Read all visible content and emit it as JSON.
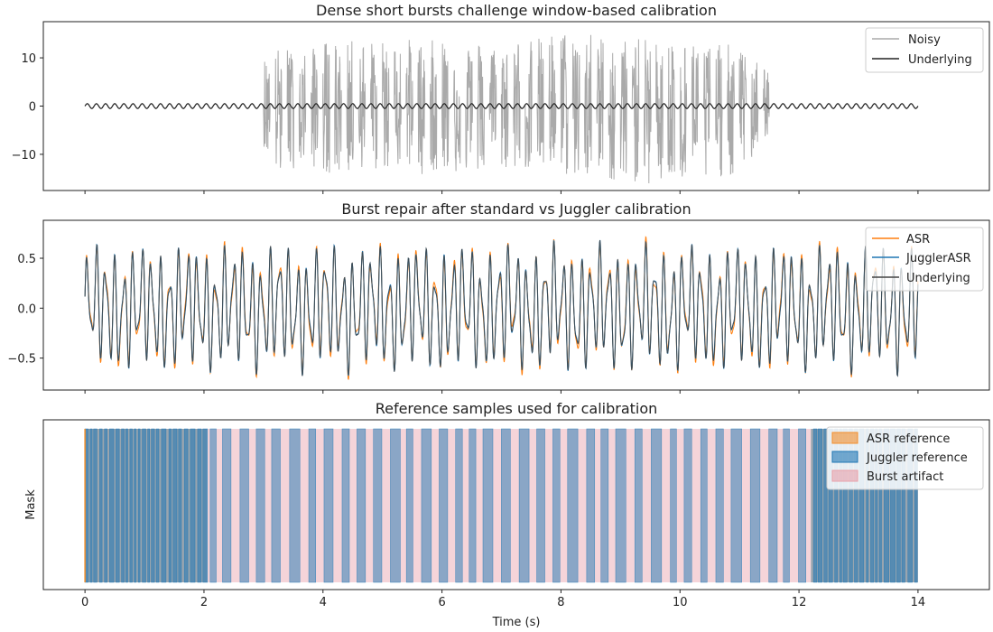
{
  "chart_data": [
    {
      "type": "line",
      "title": "Dense short bursts challenge window-based calibration",
      "xlabel": "",
      "ylabel": "",
      "xlim": [
        -0.7,
        15.2
      ],
      "ylim": [
        -17.5,
        17.5
      ],
      "yticks": [
        -10,
        0,
        10
      ],
      "yticklabels": [
        "−10",
        "0",
        "10"
      ],
      "legend": {
        "placement": "top-right",
        "entries": [
          "Noisy",
          "Underlying"
        ]
      },
      "series": [
        {
          "name": "Noisy",
          "color": "#aaaaaa",
          "description_points": {
            "x": [
              0,
              3.0,
              3.3,
              3.6,
              4.0,
              5.0,
              6.0,
              7.0,
              8.0,
              9.0,
              10.0,
              11.0,
              11.5,
              14.0
            ],
            "y_max": [
              0.4,
              10.5,
              12.0,
              11.0,
              13.0,
              13.5,
              14.0,
              13.0,
              15.5,
              14.0,
              13.5,
              12.0,
              7.0,
              0.4
            ],
            "y_min": [
              -0.4,
              -8.0,
              -15.5,
              -11.0,
              -14.0,
              -13.0,
              -14.0,
              -13.0,
              -14.0,
              -16.0,
              -16.5,
              -14.0,
              -6.0,
              -0.4
            ]
          },
          "burst_span": [
            3.0,
            11.5
          ]
        },
        {
          "name": "Underlying",
          "color": "#222222",
          "amplitude": 0.5
        }
      ]
    },
    {
      "type": "line",
      "title": "Burst repair after standard vs Juggler calibration",
      "xlabel": "",
      "ylabel": "",
      "xlim": [
        -0.7,
        15.2
      ],
      "ylim": [
        -0.82,
        0.88
      ],
      "yticks": [
        -0.5,
        0.0,
        0.5
      ],
      "yticklabels": [
        "−0.5",
        "0.0",
        "0.5"
      ],
      "legend": {
        "placement": "top-right",
        "entries": [
          "ASR",
          "JugglerASR",
          "Underlying"
        ]
      },
      "series": [
        {
          "name": "ASR",
          "color": "#ff7f0e",
          "amplitude_range": [
            0.45,
            0.7
          ]
        },
        {
          "name": "JugglerASR",
          "color": "#1f77b4",
          "amplitude_range": [
            0.45,
            0.7
          ]
        },
        {
          "name": "Underlying",
          "color": "#444444",
          "amplitude_range": [
            0.45,
            0.75
          ]
        }
      ]
    },
    {
      "type": "area",
      "title": "Reference samples used for calibration",
      "xlabel": "Time (s)",
      "ylabel": "Mask",
      "xlim": [
        -0.7,
        15.2
      ],
      "xticks": [
        0,
        2,
        4,
        6,
        8,
        10,
        12,
        14
      ],
      "legend": {
        "placement": "top-right",
        "entries": [
          "ASR reference",
          "Juggler reference",
          "Burst artifact"
        ]
      },
      "series": [
        {
          "name": "ASR reference",
          "color": "#f28e2b",
          "spans": [
            [
              0,
              2.05
            ],
            [
              12.2,
              14.0
            ]
          ]
        },
        {
          "name": "Juggler reference",
          "color": "#1f77b4",
          "spans": [
            [
              0,
              2.05
            ],
            [
              12.2,
              14.0
            ]
          ]
        },
        {
          "name": "Burst artifact",
          "color": "#e8a0aa",
          "spans": [
            [
              2.05,
              12.2
            ]
          ]
        }
      ]
    }
  ]
}
